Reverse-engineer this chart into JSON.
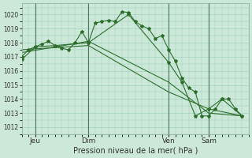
{
  "background_color": "#cce8d8",
  "grid_color": "#99ccbb",
  "line_color": "#2d6e2d",
  "marker_color": "#2d6e2d",
  "xlabel": "Pression niveau de la mer( hPa )",
  "ylim": [
    1011.5,
    1020.8
  ],
  "yticks": [
    1012,
    1013,
    1014,
    1015,
    1016,
    1017,
    1018,
    1019,
    1020
  ],
  "day_labels": [
    "Jeu",
    "Dim",
    "Ven",
    "Sam"
  ],
  "day_positions": [
    2,
    10,
    22,
    28
  ],
  "xlim": [
    0,
    34
  ],
  "vline_positions": [
    2,
    10,
    22,
    28
  ],
  "series1_x": [
    0,
    1,
    2,
    3,
    4,
    5,
    6,
    7,
    8,
    9,
    10,
    11,
    12,
    13,
    14,
    15,
    16,
    17,
    18,
    19,
    20,
    21,
    22,
    23,
    24,
    25,
    26,
    27,
    28,
    29,
    30,
    31,
    32,
    33
  ],
  "series1_y": [
    1017.0,
    1017.5,
    1017.7,
    1017.9,
    1018.1,
    1017.8,
    1017.6,
    1017.5,
    1018.0,
    1018.8,
    1018.0,
    1019.4,
    1019.5,
    1019.6,
    1019.5,
    1020.2,
    1020.15,
    1019.5,
    1019.2,
    1019.0,
    1018.3,
    1018.5,
    1017.5,
    1016.7,
    1015.5,
    1014.8,
    1014.5,
    1012.8,
    1012.8,
    1013.3,
    1014.0,
    1014.0,
    1013.3,
    1012.8
  ],
  "series2_x": [
    0,
    2,
    5,
    10,
    16,
    22,
    24,
    26,
    28,
    30,
    33
  ],
  "series2_y": [
    1016.8,
    1017.7,
    1017.8,
    1018.0,
    1020.0,
    1016.6,
    1015.2,
    1012.8,
    1013.3,
    1014.0,
    1012.8
  ],
  "series3_x": [
    0,
    10,
    22,
    28,
    33
  ],
  "series3_y": [
    1017.3,
    1018.1,
    1015.2,
    1013.0,
    1012.8
  ],
  "series4_x": [
    0,
    10,
    22,
    28,
    33
  ],
  "series4_y": [
    1017.5,
    1017.8,
    1014.5,
    1013.3,
    1012.8
  ]
}
